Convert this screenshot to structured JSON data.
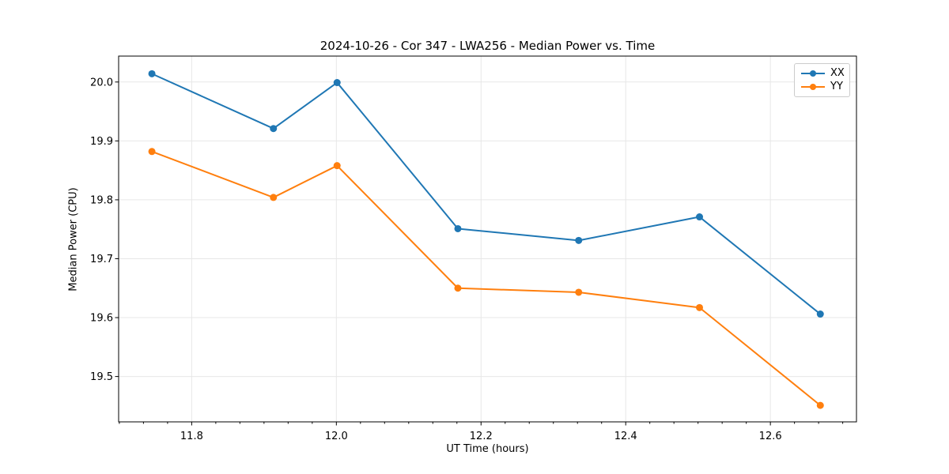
{
  "figure": {
    "background": "#ffffff",
    "text_color": "#000000",
    "grid_color": "#e7e7e7",
    "spine_color": "#000000"
  },
  "chart_data": {
    "type": "line",
    "title": "2024-10-26 - Cor 347 - LWA256 - Median Power vs. Time",
    "xlabel": "UT Time (hours)",
    "ylabel": "Median Power (CPU)",
    "x": [
      11.745,
      11.913,
      12.001,
      12.168,
      12.335,
      12.502,
      12.669
    ],
    "series": [
      {
        "name": "XX",
        "color": "#1f77b4",
        "values": [
          20.014,
          19.921,
          19.999,
          19.751,
          19.731,
          19.771,
          19.606
        ]
      },
      {
        "name": "YY",
        "color": "#ff7f0e",
        "values": [
          19.882,
          19.804,
          19.858,
          19.65,
          19.643,
          19.617,
          19.451
        ]
      }
    ],
    "xlim": [
      11.699,
      12.719
    ],
    "ylim": [
      19.423,
      20.044
    ],
    "xticks": [
      11.8,
      12.0,
      12.2,
      12.4,
      12.6
    ],
    "yticks": [
      19.5,
      19.6,
      19.7,
      19.8,
      19.9,
      20.0
    ],
    "x_minor_step": 0.0333333,
    "x_major_step": 0.2,
    "tick_decimals": 1,
    "grid": true,
    "legend_position": "upper right",
    "marker": "circle",
    "marker_radius": 4.5,
    "line_width": 2
  }
}
